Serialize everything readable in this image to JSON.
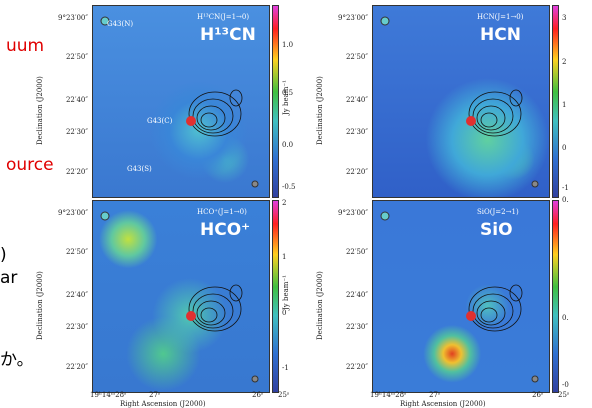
{
  "slide_fragments": {
    "red": [
      "uum",
      "ource"
    ],
    "black": [
      ")",
      "ar",
      "か。"
    ]
  },
  "panels": [
    {
      "line_label": "H¹³CN(J=1→0)",
      "title": "H¹³CN",
      "ylabel": "Declination (J2000)",
      "dec_ticks": [
        "9°23′00″",
        "22′50″",
        "22′40″",
        "22′30″",
        "22′20″"
      ],
      "sources": [
        "G43(N)",
        "G43(C)",
        "G43(S)"
      ],
      "colorbar_ticks": [
        "1.0",
        "0.5",
        "0.0",
        "-0.5"
      ],
      "colorbar_label": "Jy beam⁻¹"
    },
    {
      "line_label": "HCN(J=1→0)",
      "title": "HCN",
      "ylabel": "Declination (J2000)",
      "dec_ticks": [
        "9°23′00″",
        "22′50″",
        "22′40″",
        "22′30″",
        "22′20″"
      ],
      "colorbar_ticks": [
        "3",
        "2",
        "1",
        "0",
        "-1"
      ]
    },
    {
      "line_label": "HCO⁺(J=1→0)",
      "title": "HCO⁺",
      "ylabel": "Declination (J2000)",
      "dec_ticks": [
        "9°23′00″",
        "22′50″",
        "22′40″",
        "22′30″",
        "22′20″"
      ],
      "ra_ticks": [
        "19ʰ14ᵐ28ˢ",
        "27ˢ",
        "26ˢ",
        "25ˢ"
      ],
      "xlabel": "Right Ascension (J2000)",
      "colorbar_ticks": [
        "2",
        "1",
        "0",
        "-1"
      ],
      "colorbar_label": "Jy beam⁻¹"
    },
    {
      "line_label": "SiO(J=2→1)",
      "title": "SiO",
      "ylabel": "Declination (J2000)",
      "dec_ticks": [
        "9°23′00″",
        "22′50″",
        "22′40″",
        "22′30″",
        "22′20″"
      ],
      "ra_ticks": [
        "19ʰ14ᵐ28ˢ",
        "27ˢ",
        "26ˢ",
        "25ˢ"
      ],
      "xlabel": "Right Ascension (J2000)",
      "colorbar_ticks": [
        "0.",
        "0.",
        "-0"
      ]
    }
  ]
}
